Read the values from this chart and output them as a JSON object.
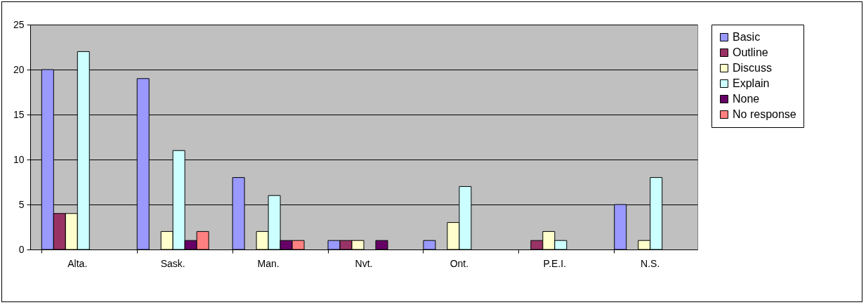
{
  "chart_data": {
    "type": "bar",
    "categories": [
      "Alta.",
      "Sask.",
      "Man.",
      "Nvt.",
      "Ont.",
      "P.E.I.",
      "N.S."
    ],
    "series": [
      {
        "name": "Basic",
        "color": "#9999ff",
        "values": [
          20,
          19,
          8,
          1,
          1,
          null,
          5
        ]
      },
      {
        "name": "Outline",
        "color": "#993366",
        "values": [
          4,
          null,
          null,
          1,
          null,
          1,
          null
        ]
      },
      {
        "name": "Discuss",
        "color": "#ffffcc",
        "values": [
          4,
          2,
          2,
          1,
          3,
          2,
          1
        ]
      },
      {
        "name": "Explain",
        "color": "#ccffff",
        "values": [
          22,
          11,
          6,
          null,
          7,
          1,
          8
        ]
      },
      {
        "name": "None",
        "color": "#660066",
        "values": [
          null,
          1,
          1,
          1,
          null,
          null,
          null
        ]
      },
      {
        "name": "No response",
        "color": "#ff8080",
        "values": [
          null,
          2,
          1,
          null,
          null,
          null,
          null
        ]
      }
    ],
    "ylim": [
      0,
      25
    ],
    "yticks": [
      0,
      5,
      10,
      15,
      20,
      25
    ],
    "grid": "y",
    "legend": "right"
  }
}
